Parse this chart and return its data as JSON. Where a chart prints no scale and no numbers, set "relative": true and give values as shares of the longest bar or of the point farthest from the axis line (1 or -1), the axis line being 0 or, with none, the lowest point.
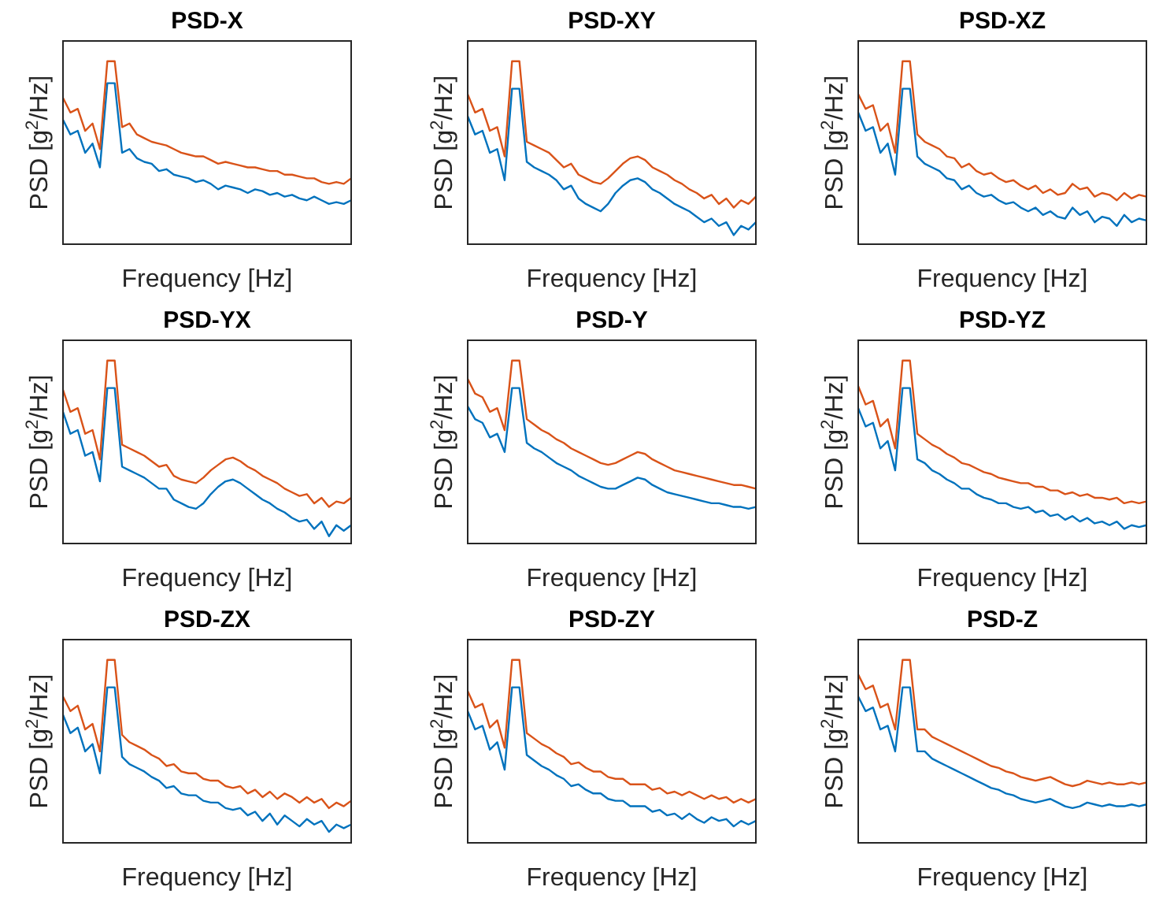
{
  "chart_data": [
    {
      "type": "line",
      "title": "PSD-X",
      "xlabel": "Frequency [Hz]",
      "ylabel": "PSD [g$^{2}$/Hz]",
      "relative": true,
      "categories": [
        null,
        null,
        null,
        null,
        null,
        null,
        null,
        null,
        null,
        null,
        null,
        null,
        null,
        null,
        null,
        null,
        null,
        null,
        null,
        null,
        null,
        null,
        null,
        null,
        null,
        null,
        null,
        null,
        null,
        null,
        null,
        null,
        null,
        null,
        null,
        null,
        null,
        null,
        null,
        null
      ],
      "series": [
        {
          "color": "#0072bd",
          "values": [
            0.68,
            0.6,
            0.62,
            0.5,
            0.55,
            0.42,
            0.88,
            0.88,
            0.5,
            0.52,
            0.47,
            0.45,
            0.44,
            0.4,
            0.41,
            0.38,
            0.37,
            0.36,
            0.34,
            0.35,
            0.33,
            0.3,
            0.32,
            0.31,
            0.3,
            0.28,
            0.3,
            0.29,
            0.27,
            0.28,
            0.26,
            0.27,
            0.25,
            0.24,
            0.26,
            0.24,
            0.22,
            0.23,
            0.22,
            0.24
          ]
        },
        {
          "color": "#d95319",
          "values": [
            0.8,
            0.72,
            0.74,
            0.62,
            0.66,
            0.52,
            1,
            1,
            0.64,
            0.66,
            0.6,
            0.58,
            0.56,
            0.55,
            0.54,
            0.52,
            0.5,
            0.49,
            0.48,
            0.48,
            0.46,
            0.44,
            0.45,
            0.44,
            0.43,
            0.42,
            0.42,
            0.41,
            0.4,
            0.4,
            0.38,
            0.38,
            0.37,
            0.36,
            0.36,
            0.34,
            0.33,
            0.34,
            0.33,
            0.36
          ]
        }
      ]
    },
    {
      "type": "line",
      "title": "PSD-XY",
      "xlabel": "Frequency [Hz]",
      "ylabel": "PSD [g$^{2}$/Hz]",
      "relative": true,
      "categories": [
        null,
        null,
        null,
        null,
        null,
        null,
        null,
        null,
        null,
        null,
        null,
        null,
        null,
        null,
        null,
        null,
        null,
        null,
        null,
        null,
        null,
        null,
        null,
        null,
        null,
        null,
        null,
        null,
        null,
        null,
        null,
        null,
        null,
        null,
        null,
        null,
        null,
        null,
        null,
        null
      ],
      "series": [
        {
          "color": "#0072bd",
          "values": [
            0.7,
            0.6,
            0.62,
            0.5,
            0.52,
            0.35,
            0.85,
            0.85,
            0.45,
            0.42,
            0.4,
            0.38,
            0.35,
            0.3,
            0.32,
            0.25,
            0.22,
            0.2,
            0.18,
            0.22,
            0.28,
            0.32,
            0.35,
            0.36,
            0.34,
            0.3,
            0.28,
            0.25,
            0.22,
            0.2,
            0.18,
            0.15,
            0.12,
            0.14,
            0.1,
            0.12,
            0.05,
            0.1,
            0.08,
            0.12
          ]
        },
        {
          "color": "#d95319",
          "values": [
            0.82,
            0.72,
            0.74,
            0.62,
            0.64,
            0.48,
            1,
            1,
            0.56,
            0.54,
            0.52,
            0.5,
            0.46,
            0.42,
            0.44,
            0.38,
            0.36,
            0.34,
            0.33,
            0.36,
            0.4,
            0.44,
            0.47,
            0.48,
            0.46,
            0.42,
            0.4,
            0.38,
            0.35,
            0.33,
            0.3,
            0.28,
            0.25,
            0.27,
            0.22,
            0.25,
            0.2,
            0.24,
            0.22,
            0.26
          ]
        }
      ]
    },
    {
      "type": "line",
      "title": "PSD-XZ",
      "xlabel": "Frequency [Hz]",
      "ylabel": "PSD [g$^{2}$/Hz]",
      "relative": true,
      "categories": [
        null,
        null,
        null,
        null,
        null,
        null,
        null,
        null,
        null,
        null,
        null,
        null,
        null,
        null,
        null,
        null,
        null,
        null,
        null,
        null,
        null,
        null,
        null,
        null,
        null,
        null,
        null,
        null,
        null,
        null,
        null,
        null,
        null,
        null,
        null,
        null,
        null,
        null,
        null,
        null
      ],
      "series": [
        {
          "color": "#0072bd",
          "values": [
            0.72,
            0.62,
            0.64,
            0.5,
            0.55,
            0.38,
            0.85,
            0.85,
            0.48,
            0.44,
            0.42,
            0.4,
            0.36,
            0.35,
            0.3,
            0.32,
            0.28,
            0.26,
            0.27,
            0.24,
            0.22,
            0.23,
            0.2,
            0.18,
            0.2,
            0.16,
            0.18,
            0.15,
            0.14,
            0.2,
            0.16,
            0.18,
            0.12,
            0.15,
            0.14,
            0.1,
            0.16,
            0.12,
            0.14,
            0.13
          ]
        },
        {
          "color": "#d95319",
          "values": [
            0.82,
            0.74,
            0.76,
            0.62,
            0.66,
            0.5,
            1,
            1,
            0.6,
            0.56,
            0.54,
            0.52,
            0.48,
            0.47,
            0.42,
            0.44,
            0.4,
            0.38,
            0.39,
            0.36,
            0.34,
            0.35,
            0.32,
            0.3,
            0.32,
            0.28,
            0.3,
            0.27,
            0.28,
            0.33,
            0.3,
            0.31,
            0.26,
            0.28,
            0.27,
            0.24,
            0.28,
            0.25,
            0.27,
            0.26
          ]
        }
      ]
    },
    {
      "type": "line",
      "title": "PSD-YX",
      "xlabel": "Frequency [Hz]",
      "ylabel": "PSD [g$^{2}$/Hz]",
      "relative": true,
      "categories": [
        null,
        null,
        null,
        null,
        null,
        null,
        null,
        null,
        null,
        null,
        null,
        null,
        null,
        null,
        null,
        null,
        null,
        null,
        null,
        null,
        null,
        null,
        null,
        null,
        null,
        null,
        null,
        null,
        null,
        null,
        null,
        null,
        null,
        null,
        null,
        null,
        null,
        null,
        null,
        null
      ],
      "series": [
        {
          "color": "#0072bd",
          "values": [
            0.72,
            0.6,
            0.62,
            0.48,
            0.5,
            0.34,
            0.85,
            0.85,
            0.42,
            0.4,
            0.38,
            0.36,
            0.33,
            0.3,
            0.3,
            0.24,
            0.22,
            0.2,
            0.19,
            0.22,
            0.27,
            0.31,
            0.34,
            0.35,
            0.33,
            0.3,
            0.27,
            0.24,
            0.22,
            0.19,
            0.17,
            0.14,
            0.12,
            0.13,
            0.08,
            0.12,
            0.04,
            0.1,
            0.07,
            0.1
          ]
        },
        {
          "color": "#d95319",
          "values": [
            0.84,
            0.72,
            0.74,
            0.6,
            0.62,
            0.46,
            1,
            1,
            0.54,
            0.52,
            0.5,
            0.48,
            0.45,
            0.42,
            0.43,
            0.37,
            0.35,
            0.34,
            0.33,
            0.36,
            0.4,
            0.43,
            0.46,
            0.47,
            0.45,
            0.42,
            0.4,
            0.37,
            0.35,
            0.33,
            0.3,
            0.28,
            0.26,
            0.27,
            0.22,
            0.25,
            0.2,
            0.23,
            0.22,
            0.25
          ]
        }
      ]
    },
    {
      "type": "line",
      "title": "PSD-Y",
      "xlabel": "Frequency [Hz]",
      "ylabel": "PSD [g$^{2}$/Hz]",
      "relative": true,
      "categories": [
        null,
        null,
        null,
        null,
        null,
        null,
        null,
        null,
        null,
        null,
        null,
        null,
        null,
        null,
        null,
        null,
        null,
        null,
        null,
        null,
        null,
        null,
        null,
        null,
        null,
        null,
        null,
        null,
        null,
        null,
        null,
        null,
        null,
        null,
        null,
        null,
        null,
        null,
        null,
        null
      ],
      "series": [
        {
          "color": "#0072bd",
          "values": [
            0.75,
            0.68,
            0.66,
            0.58,
            0.6,
            0.5,
            0.85,
            0.85,
            0.55,
            0.52,
            0.5,
            0.47,
            0.44,
            0.42,
            0.4,
            0.37,
            0.35,
            0.33,
            0.31,
            0.3,
            0.3,
            0.32,
            0.34,
            0.36,
            0.35,
            0.32,
            0.3,
            0.28,
            0.27,
            0.26,
            0.25,
            0.24,
            0.23,
            0.22,
            0.22,
            0.21,
            0.2,
            0.2,
            0.19,
            0.2
          ]
        },
        {
          "color": "#d95319",
          "values": [
            0.9,
            0.82,
            0.8,
            0.72,
            0.74,
            0.62,
            1,
            1,
            0.68,
            0.65,
            0.62,
            0.6,
            0.57,
            0.55,
            0.52,
            0.5,
            0.48,
            0.46,
            0.44,
            0.43,
            0.44,
            0.46,
            0.48,
            0.5,
            0.49,
            0.46,
            0.44,
            0.42,
            0.4,
            0.39,
            0.38,
            0.37,
            0.36,
            0.35,
            0.34,
            0.33,
            0.32,
            0.32,
            0.31,
            0.3
          ]
        }
      ]
    },
    {
      "type": "line",
      "title": "PSD-YZ",
      "xlabel": "Frequency [Hz]",
      "ylabel": "PSD [g$^{2}$/Hz]",
      "relative": true,
      "categories": [
        null,
        null,
        null,
        null,
        null,
        null,
        null,
        null,
        null,
        null,
        null,
        null,
        null,
        null,
        null,
        null,
        null,
        null,
        null,
        null,
        null,
        null,
        null,
        null,
        null,
        null,
        null,
        null,
        null,
        null,
        null,
        null,
        null,
        null,
        null,
        null,
        null,
        null,
        null,
        null
      ],
      "series": [
        {
          "color": "#0072bd",
          "values": [
            0.74,
            0.64,
            0.66,
            0.52,
            0.56,
            0.4,
            0.85,
            0.85,
            0.46,
            0.44,
            0.4,
            0.38,
            0.35,
            0.33,
            0.3,
            0.3,
            0.27,
            0.25,
            0.24,
            0.22,
            0.22,
            0.2,
            0.19,
            0.2,
            0.17,
            0.18,
            0.15,
            0.16,
            0.13,
            0.15,
            0.12,
            0.14,
            0.11,
            0.12,
            0.1,
            0.12,
            0.08,
            0.1,
            0.09,
            0.1
          ]
        },
        {
          "color": "#d95319",
          "values": [
            0.86,
            0.76,
            0.78,
            0.64,
            0.68,
            0.52,
            1,
            1,
            0.6,
            0.57,
            0.54,
            0.52,
            0.49,
            0.47,
            0.44,
            0.43,
            0.41,
            0.39,
            0.38,
            0.36,
            0.35,
            0.34,
            0.33,
            0.33,
            0.31,
            0.31,
            0.29,
            0.29,
            0.27,
            0.28,
            0.26,
            0.27,
            0.25,
            0.25,
            0.24,
            0.25,
            0.22,
            0.23,
            0.22,
            0.23
          ]
        }
      ]
    },
    {
      "type": "line",
      "title": "PSD-ZX",
      "xlabel": "Frequency [Hz]",
      "ylabel": "PSD [g$^{2}$/Hz]",
      "relative": true,
      "categories": [
        null,
        null,
        null,
        null,
        null,
        null,
        null,
        null,
        null,
        null,
        null,
        null,
        null,
        null,
        null,
        null,
        null,
        null,
        null,
        null,
        null,
        null,
        null,
        null,
        null,
        null,
        null,
        null,
        null,
        null,
        null,
        null,
        null,
        null,
        null,
        null,
        null,
        null,
        null,
        null
      ],
      "series": [
        {
          "color": "#0072bd",
          "values": [
            0.7,
            0.6,
            0.63,
            0.5,
            0.54,
            0.38,
            0.85,
            0.85,
            0.47,
            0.43,
            0.41,
            0.39,
            0.36,
            0.34,
            0.3,
            0.31,
            0.27,
            0.26,
            0.26,
            0.23,
            0.22,
            0.22,
            0.19,
            0.18,
            0.19,
            0.15,
            0.17,
            0.12,
            0.16,
            0.1,
            0.15,
            0.12,
            0.09,
            0.13,
            0.1,
            0.12,
            0.06,
            0.1,
            0.08,
            0.1
          ]
        },
        {
          "color": "#d95319",
          "values": [
            0.8,
            0.72,
            0.75,
            0.62,
            0.65,
            0.5,
            1,
            1,
            0.59,
            0.55,
            0.53,
            0.51,
            0.48,
            0.46,
            0.42,
            0.43,
            0.39,
            0.38,
            0.38,
            0.35,
            0.34,
            0.34,
            0.31,
            0.3,
            0.31,
            0.27,
            0.29,
            0.25,
            0.28,
            0.24,
            0.27,
            0.25,
            0.22,
            0.25,
            0.22,
            0.24,
            0.19,
            0.22,
            0.2,
            0.23
          ]
        }
      ]
    },
    {
      "type": "line",
      "title": "PSD-ZY",
      "xlabel": "Frequency [Hz]",
      "ylabel": "PSD [g$^{2}$/Hz]",
      "relative": true,
      "categories": [
        null,
        null,
        null,
        null,
        null,
        null,
        null,
        null,
        null,
        null,
        null,
        null,
        null,
        null,
        null,
        null,
        null,
        null,
        null,
        null,
        null,
        null,
        null,
        null,
        null,
        null,
        null,
        null,
        null,
        null,
        null,
        null,
        null,
        null,
        null,
        null,
        null,
        null,
        null,
        null
      ],
      "series": [
        {
          "color": "#0072bd",
          "values": [
            0.72,
            0.62,
            0.64,
            0.51,
            0.55,
            0.4,
            0.85,
            0.85,
            0.48,
            0.45,
            0.42,
            0.4,
            0.37,
            0.35,
            0.31,
            0.32,
            0.29,
            0.27,
            0.27,
            0.24,
            0.23,
            0.23,
            0.2,
            0.2,
            0.2,
            0.17,
            0.18,
            0.15,
            0.16,
            0.13,
            0.16,
            0.13,
            0.11,
            0.14,
            0.12,
            0.13,
            0.09,
            0.12,
            0.1,
            0.12
          ]
        },
        {
          "color": "#d95319",
          "values": [
            0.83,
            0.74,
            0.76,
            0.63,
            0.67,
            0.52,
            1,
            1,
            0.6,
            0.57,
            0.54,
            0.52,
            0.49,
            0.47,
            0.43,
            0.44,
            0.41,
            0.39,
            0.39,
            0.36,
            0.35,
            0.35,
            0.32,
            0.32,
            0.32,
            0.29,
            0.3,
            0.27,
            0.28,
            0.26,
            0.28,
            0.26,
            0.24,
            0.26,
            0.24,
            0.25,
            0.22,
            0.24,
            0.22,
            0.24
          ]
        }
      ]
    },
    {
      "type": "line",
      "title": "PSD-Z",
      "xlabel": "Frequency [Hz]",
      "ylabel": "PSD [g$^{2}$/Hz]",
      "relative": true,
      "categories": [
        null,
        null,
        null,
        null,
        null,
        null,
        null,
        null,
        null,
        null,
        null,
        null,
        null,
        null,
        null,
        null,
        null,
        null,
        null,
        null,
        null,
        null,
        null,
        null,
        null,
        null,
        null,
        null,
        null,
        null,
        null,
        null,
        null,
        null,
        null,
        null,
        null,
        null,
        null,
        null
      ],
      "series": [
        {
          "color": "#0072bd",
          "values": [
            0.8,
            0.72,
            0.74,
            0.62,
            0.64,
            0.5,
            0.85,
            0.85,
            0.5,
            0.5,
            0.46,
            0.44,
            0.42,
            0.4,
            0.38,
            0.36,
            0.34,
            0.32,
            0.3,
            0.29,
            0.27,
            0.26,
            0.24,
            0.23,
            0.22,
            0.23,
            0.24,
            0.22,
            0.2,
            0.19,
            0.2,
            0.22,
            0.21,
            0.2,
            0.21,
            0.2,
            0.2,
            0.21,
            0.2,
            0.21
          ]
        },
        {
          "color": "#d95319",
          "values": [
            0.92,
            0.84,
            0.86,
            0.74,
            0.76,
            0.62,
            1,
            1,
            0.62,
            0.62,
            0.58,
            0.56,
            0.54,
            0.52,
            0.5,
            0.48,
            0.46,
            0.44,
            0.42,
            0.41,
            0.39,
            0.38,
            0.36,
            0.35,
            0.34,
            0.35,
            0.36,
            0.34,
            0.32,
            0.31,
            0.32,
            0.34,
            0.33,
            0.32,
            0.33,
            0.32,
            0.32,
            0.33,
            0.32,
            0.33
          ]
        }
      ]
    }
  ]
}
